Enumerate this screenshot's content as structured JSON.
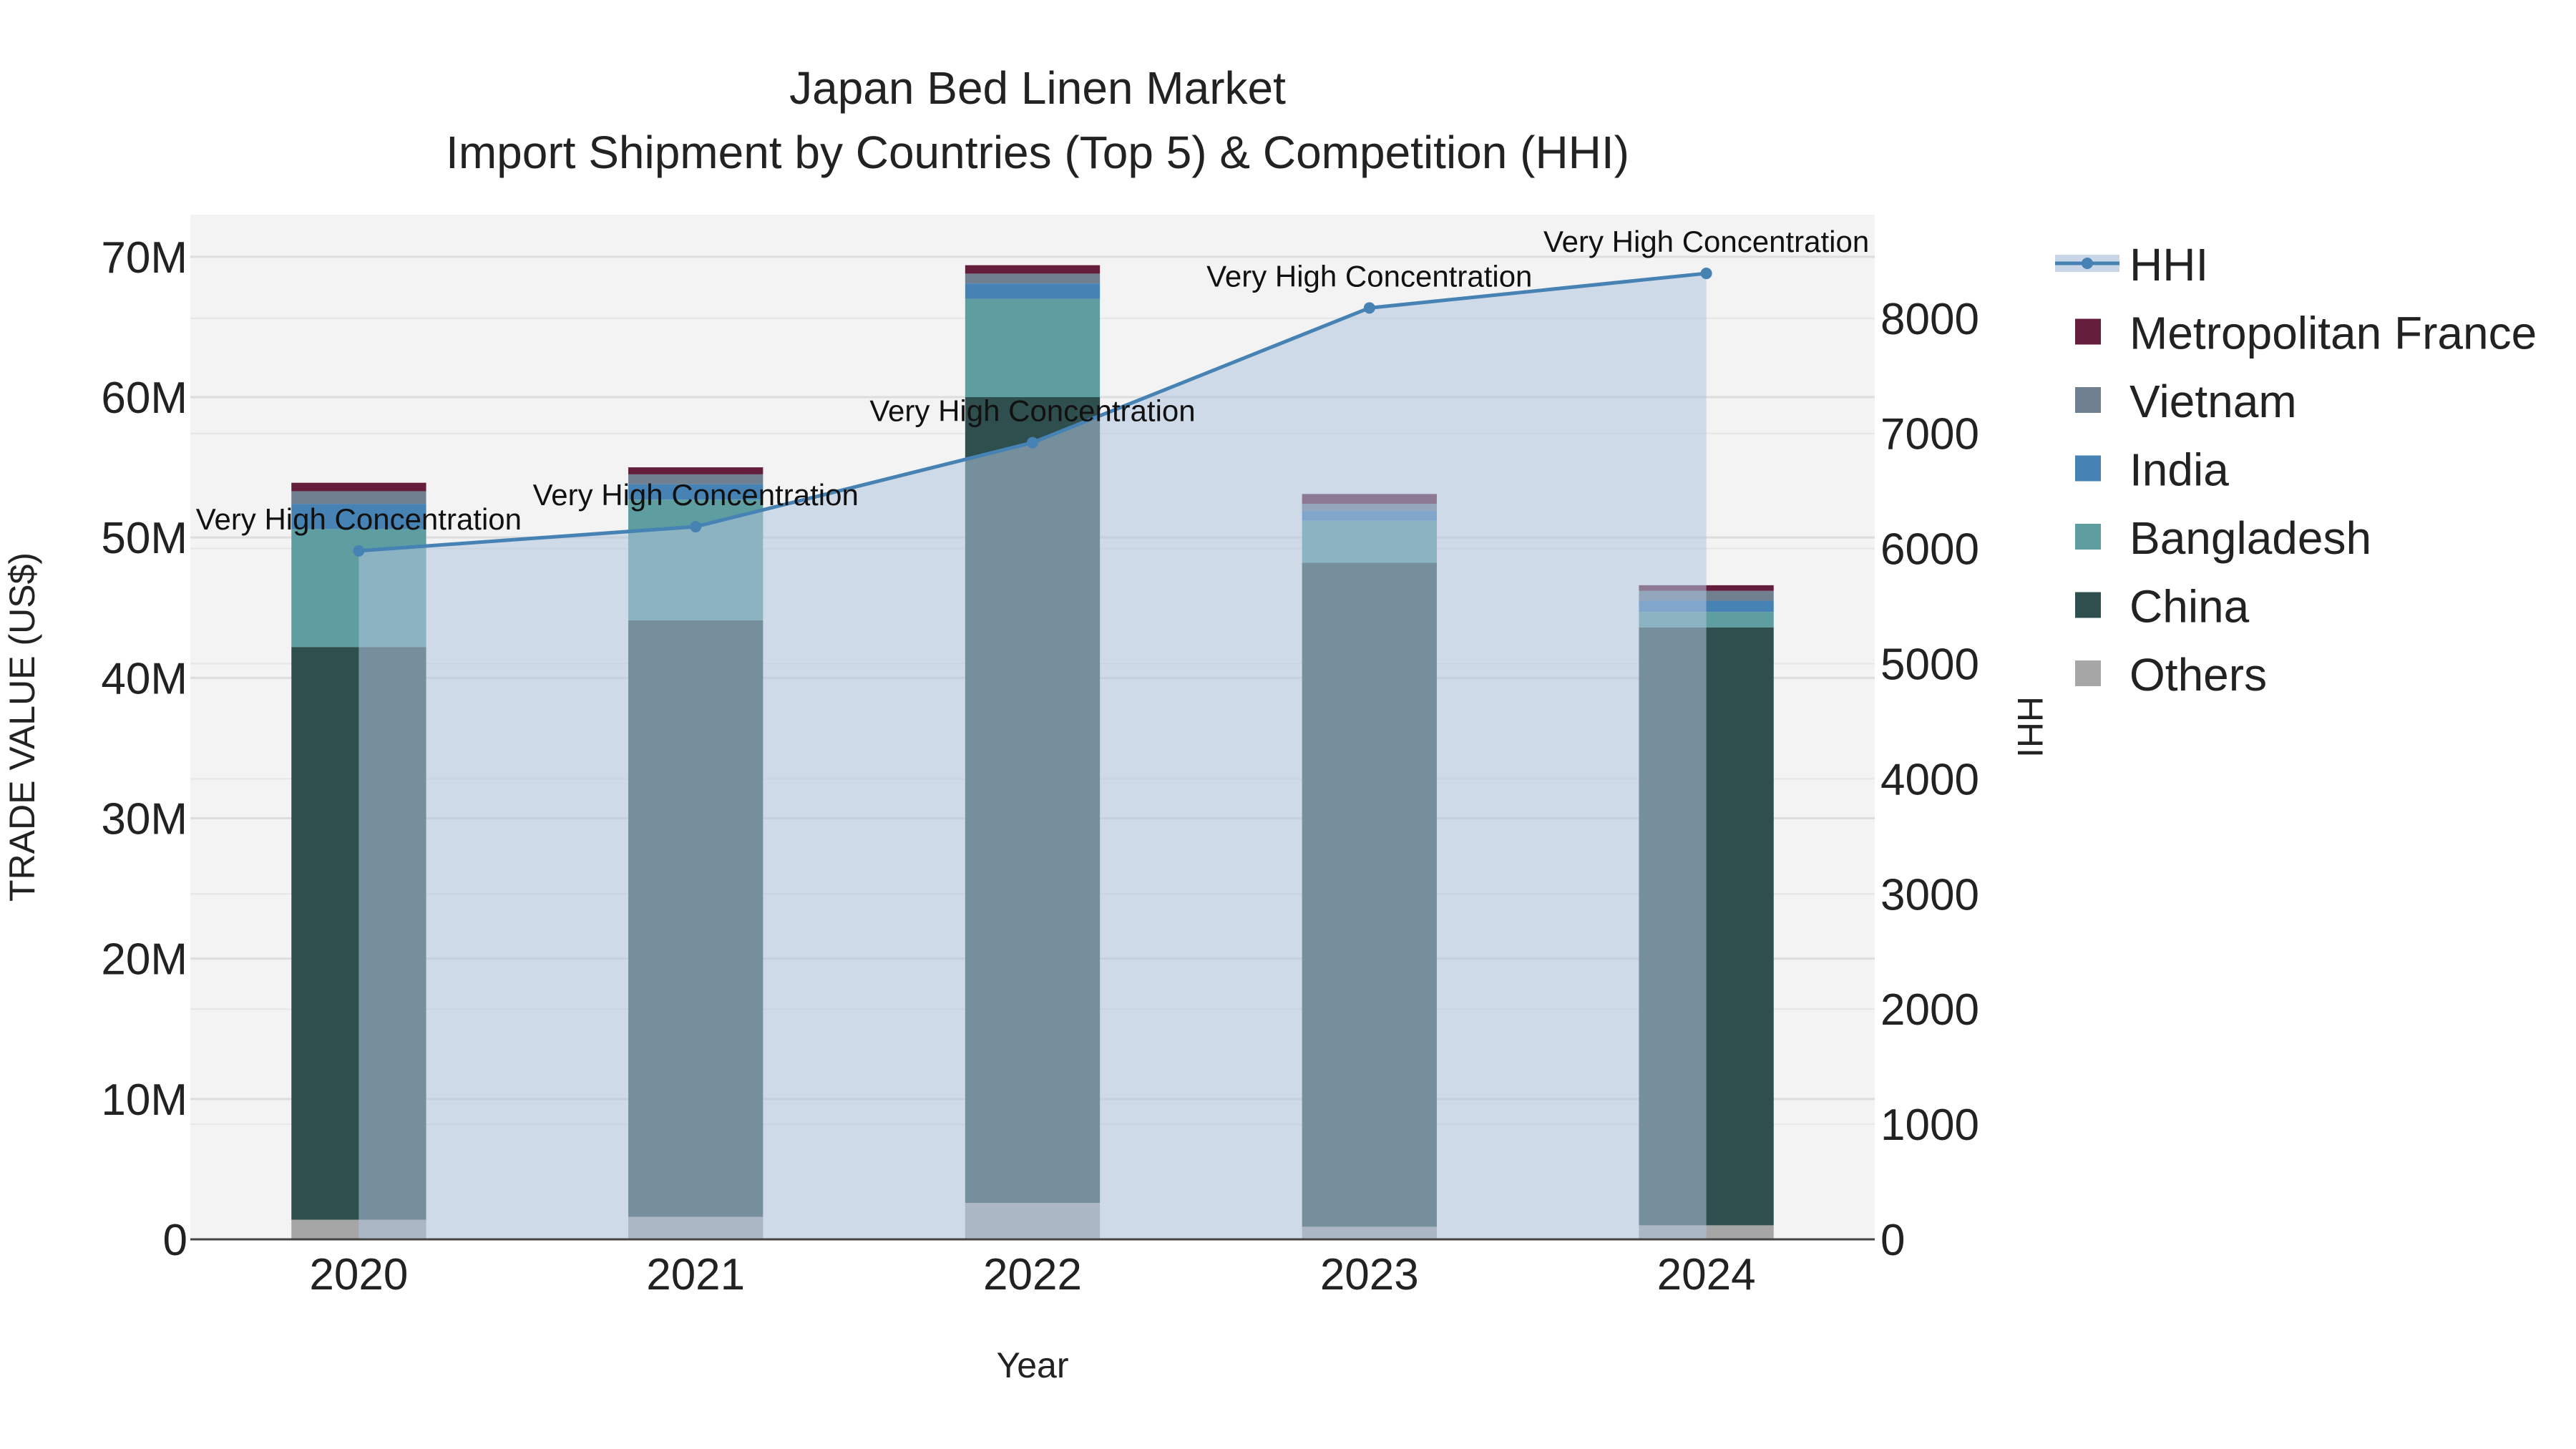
{
  "chart_data": {
    "type": "bar",
    "title": "Japan Bed Linen Market",
    "subtitle": "Import Shipment by Countries (Top 5) & Competition (HHI)",
    "xlabel": "Year",
    "ylabel": "TRADE VALUE (US$)",
    "y2label": "HHI",
    "categories": [
      "2020",
      "2021",
      "2022",
      "2023",
      "2024"
    ],
    "ylim": [
      0,
      73000000
    ],
    "y2lim": [
      0,
      8900
    ],
    "yticks": [
      0,
      10000000,
      20000000,
      30000000,
      40000000,
      50000000,
      60000000,
      70000000
    ],
    "ytick_labels": [
      "0",
      "10M",
      "20M",
      "30M",
      "40M",
      "50M",
      "60M",
      "70M"
    ],
    "y2ticks": [
      0,
      1000,
      2000,
      3000,
      4000,
      5000,
      6000,
      7000,
      8000
    ],
    "y2tick_labels": [
      "0",
      "1000",
      "2000",
      "3000",
      "4000",
      "5000",
      "6000",
      "7000",
      "8000"
    ],
    "series": [
      {
        "name": "Others",
        "color": "#a6a6a6",
        "values": [
          1400000,
          1600000,
          2600000,
          900000,
          1000000
        ]
      },
      {
        "name": "China",
        "color": "#2f4f4f",
        "values": [
          40800000,
          42500000,
          57400000,
          47300000,
          42600000
        ]
      },
      {
        "name": "Bangladesh",
        "color": "#5f9ea0",
        "values": [
          8400000,
          8600000,
          7000000,
          3000000,
          1100000
        ]
      },
      {
        "name": "India",
        "color": "#4682b4",
        "values": [
          1800000,
          1100000,
          1100000,
          700000,
          800000
        ]
      },
      {
        "name": "Vietnam",
        "color": "#708090",
        "values": [
          900000,
          700000,
          700000,
          500000,
          700000
        ]
      },
      {
        "name": "Metropolitan France",
        "color": "#641e3c",
        "values": [
          600000,
          500000,
          600000,
          700000,
          400000
        ]
      }
    ],
    "hhi": {
      "name": "HHI",
      "color": "#4682b4",
      "fill_color": "#b0c4de",
      "values": [
        5980,
        6190,
        6920,
        8090,
        8390
      ],
      "labels": [
        "Very High Concentration",
        "Very High Concentration",
        "Very High Concentration",
        "Very High Concentration",
        "Very High Concentration"
      ]
    },
    "legend_order": [
      "HHI",
      "Metropolitan France",
      "Vietnam",
      "India",
      "Bangladesh",
      "China",
      "Others"
    ],
    "legend_position": "right"
  }
}
